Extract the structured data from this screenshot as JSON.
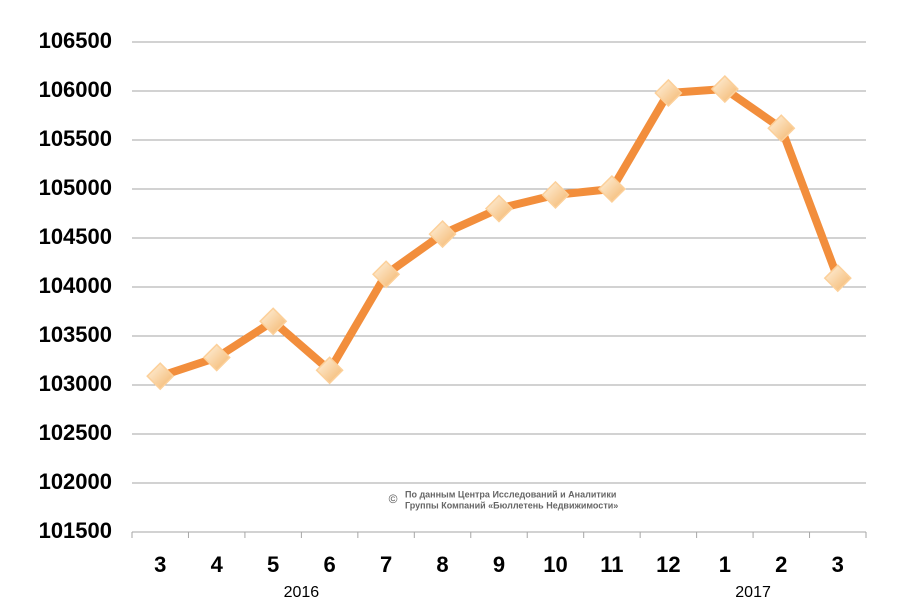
{
  "chart_data": {
    "type": "line",
    "categories": [
      "3",
      "4",
      "5",
      "6",
      "7",
      "8",
      "9",
      "10",
      "11",
      "12",
      "1",
      "2",
      "3"
    ],
    "group_labels": [
      "2016",
      "2017"
    ],
    "series": [
      {
        "color": "#f28e3c",
        "marker_color": "#fcd09a",
        "values": [
          103090,
          103280,
          103650,
          103150,
          104130,
          104540,
          104800,
          104940,
          105000,
          105980,
          106020,
          105620,
          104090
        ]
      }
    ],
    "ylim": [
      101500,
      106500
    ],
    "yticks": [
      101500,
      102000,
      102500,
      103000,
      103500,
      104000,
      104500,
      105000,
      105500,
      106000,
      106500
    ],
    "grid": true,
    "watermark": {
      "symbol": "©",
      "lines": [
        "По данным Центра Исследований и Аналитики",
        "Группы Компаний «Бюллетень Недвижимости»"
      ]
    }
  }
}
